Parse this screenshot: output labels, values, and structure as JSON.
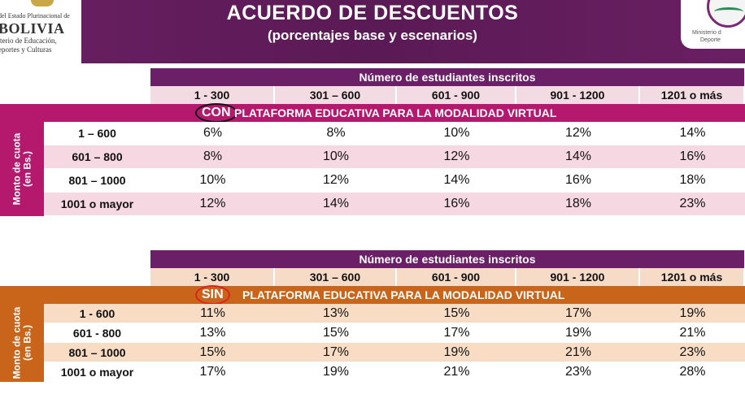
{
  "header": {
    "title": "ACUERDO DE DESCUENTOS",
    "subtitle": "(porcentajes base y escenarios)",
    "logo_left": {
      "line1": "o del Estado Plurinacional de",
      "line2": "BOLIVIA",
      "line3": "isterio de Educación,",
      "line4": "eportes y Culturas"
    },
    "logo_right": {
      "line1": "Ministerio d",
      "line2": "Deporte"
    }
  },
  "colors": {
    "purple": "#6b1f66",
    "magenta": "#b5196e",
    "pink_row": "#f6d8e2",
    "pink_header": "#f3dbe3",
    "orange": "#c8651b",
    "peach_row": "#f8dcc4",
    "peach_header": "#f6dcc6",
    "circle_con": "#111111",
    "circle_sin": "#e02020"
  },
  "table_con": {
    "header": "Número de estudiantes inscritos",
    "columns": [
      "1 - 300",
      "301 – 600",
      "601 - 900",
      "901 - 1200",
      "1201 o más"
    ],
    "tag": "CON",
    "band_text": "PLATAFORMA EDUCATIVA PARA LA MODALIDAD VIRTUAL",
    "side_label": "Monto de cuota\n(en Bs.)",
    "rows": [
      {
        "label": "1 – 600",
        "values": [
          "6%",
          "8%",
          "10%",
          "12%",
          "14%"
        ]
      },
      {
        "label": "601 – 800",
        "values": [
          "8%",
          "10%",
          "12%",
          "14%",
          "16%"
        ]
      },
      {
        "label": "801 – 1000",
        "values": [
          "10%",
          "12%",
          "14%",
          "16%",
          "18%"
        ]
      },
      {
        "label": "1001 o mayor",
        "values": [
          "12%",
          "14%",
          "16%",
          "18%",
          "23%"
        ]
      }
    ]
  },
  "table_sin": {
    "header": "Número de estudiantes inscritos",
    "columns": [
      "1 - 300",
      "301 – 600",
      "601 - 900",
      "901 - 1200",
      "1201 o más"
    ],
    "tag": "SIN",
    "band_text": "PLATAFORMA EDUCATIVA PARA LA MODALIDAD VIRTUAL",
    "side_label": "Monto de cuota\n(en Bs.)",
    "rows": [
      {
        "label": "1 - 600",
        "values": [
          "11%",
          "13%",
          "15%",
          "17%",
          "19%"
        ]
      },
      {
        "label": "601 - 800",
        "values": [
          "13%",
          "15%",
          "17%",
          "19%",
          "21%"
        ]
      },
      {
        "label": "801 – 1000",
        "values": [
          "15%",
          "17%",
          "19%",
          "21%",
          "23%"
        ]
      },
      {
        "label": "1001 o mayor",
        "values": [
          "17%",
          "19%",
          "21%",
          "23%",
          "28%"
        ]
      }
    ]
  }
}
